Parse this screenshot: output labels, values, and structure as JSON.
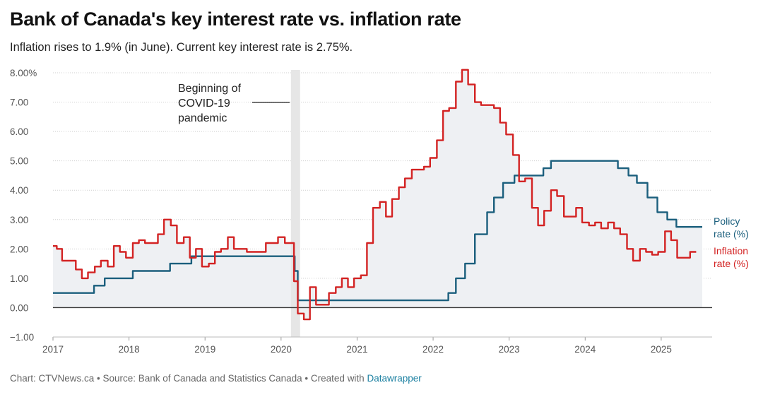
{
  "title": "Bank of Canada's key interest rate vs. inflation rate",
  "subtitle": "Inflation rises to 1.9% (in June). Current key interest rate is 2.75%.",
  "footer": {
    "credit": "Chart: CTVNews.ca • Source: Bank of Canada and Statistics Canada • Created with ",
    "brand": "Datawrapper"
  },
  "colors": {
    "policy": "#1b5f7d",
    "inflation": "#d32323",
    "fill": "#eef0f3",
    "band": "#e6e6e6",
    "zero": "#333333"
  },
  "chart_data": {
    "type": "line",
    "title": "Bank of Canada's key interest rate vs. inflation rate",
    "xlabel": "",
    "ylabel": "",
    "xlim": [
      2017.0,
      2025.67
    ],
    "ylim": [
      -1,
      8
    ],
    "y_ticks": [
      -1,
      0,
      1,
      2,
      3,
      4,
      5,
      6,
      7,
      8
    ],
    "y_tick_labels": [
      "−1.00",
      "0.00",
      "1.00",
      "2.00",
      "3.00",
      "4.00",
      "5.00",
      "6.00",
      "7.00",
      "8.00%"
    ],
    "x_ticks": [
      2017,
      2018,
      2019,
      2020,
      2021,
      2022,
      2023,
      2024,
      2025
    ],
    "x_tick_labels": [
      "2017",
      "2018",
      "2019",
      "2020",
      "2021",
      "2022",
      "2023",
      "2024",
      "2025"
    ],
    "grid": "horizontal dotted",
    "annotation": {
      "text": [
        "Beginning of",
        "COVID-19",
        "pandemic"
      ],
      "band": [
        2020.13,
        2020.25
      ]
    },
    "series": [
      {
        "name": "Policy rate (%)",
        "label_lines": [
          "Policy",
          "rate (%)"
        ],
        "color": "#1b5f7d",
        "step": true,
        "points": [
          [
            2017.0,
            0.5
          ],
          [
            2017.54,
            0.75
          ],
          [
            2017.68,
            1.0
          ],
          [
            2018.05,
            1.25
          ],
          [
            2018.54,
            1.5
          ],
          [
            2018.82,
            1.75
          ],
          [
            2020.18,
            1.25
          ],
          [
            2020.22,
            0.25
          ],
          [
            2022.2,
            0.5
          ],
          [
            2022.3,
            1.0
          ],
          [
            2022.42,
            1.5
          ],
          [
            2022.55,
            2.5
          ],
          [
            2022.71,
            3.25
          ],
          [
            2022.8,
            3.75
          ],
          [
            2022.92,
            4.25
          ],
          [
            2023.07,
            4.5
          ],
          [
            2023.45,
            4.75
          ],
          [
            2023.55,
            5.0
          ],
          [
            2024.43,
            4.75
          ],
          [
            2024.57,
            4.5
          ],
          [
            2024.68,
            4.25
          ],
          [
            2024.82,
            3.75
          ],
          [
            2024.95,
            3.25
          ],
          [
            2025.08,
            3.0
          ],
          [
            2025.2,
            2.75
          ],
          [
            2025.54,
            2.75
          ]
        ]
      },
      {
        "name": "Inflation rate (%)",
        "label_lines": [
          "Inflation",
          "rate (%)"
        ],
        "color": "#d32323",
        "step": true,
        "points": [
          [
            2017.0,
            2.1
          ],
          [
            2017.05,
            2.0
          ],
          [
            2017.12,
            1.6
          ],
          [
            2017.3,
            1.3
          ],
          [
            2017.38,
            1.0
          ],
          [
            2017.46,
            1.2
          ],
          [
            2017.55,
            1.4
          ],
          [
            2017.63,
            1.6
          ],
          [
            2017.72,
            1.4
          ],
          [
            2017.8,
            2.1
          ],
          [
            2017.88,
            1.9
          ],
          [
            2017.96,
            1.7
          ],
          [
            2018.05,
            2.2
          ],
          [
            2018.13,
            2.3
          ],
          [
            2018.21,
            2.2
          ],
          [
            2018.38,
            2.5
          ],
          [
            2018.46,
            3.0
          ],
          [
            2018.55,
            2.8
          ],
          [
            2018.63,
            2.2
          ],
          [
            2018.72,
            2.4
          ],
          [
            2018.8,
            1.7
          ],
          [
            2018.88,
            2.0
          ],
          [
            2018.96,
            1.4
          ],
          [
            2019.05,
            1.5
          ],
          [
            2019.13,
            1.9
          ],
          [
            2019.21,
            2.0
          ],
          [
            2019.3,
            2.4
          ],
          [
            2019.38,
            2.0
          ],
          [
            2019.55,
            1.9
          ],
          [
            2019.8,
            2.2
          ],
          [
            2019.88,
            2.2
          ],
          [
            2019.96,
            2.4
          ],
          [
            2020.05,
            2.2
          ],
          [
            2020.13,
            2.2
          ],
          [
            2020.17,
            0.9
          ],
          [
            2020.22,
            -0.2
          ],
          [
            2020.3,
            -0.4
          ],
          [
            2020.38,
            0.7
          ],
          [
            2020.46,
            0.1
          ],
          [
            2020.63,
            0.5
          ],
          [
            2020.72,
            0.7
          ],
          [
            2020.8,
            1.0
          ],
          [
            2020.88,
            0.7
          ],
          [
            2020.96,
            1.0
          ],
          [
            2021.05,
            1.1
          ],
          [
            2021.13,
            2.2
          ],
          [
            2021.21,
            3.4
          ],
          [
            2021.3,
            3.6
          ],
          [
            2021.38,
            3.1
          ],
          [
            2021.46,
            3.7
          ],
          [
            2021.55,
            4.1
          ],
          [
            2021.63,
            4.4
          ],
          [
            2021.72,
            4.7
          ],
          [
            2021.88,
            4.8
          ],
          [
            2021.96,
            5.1
          ],
          [
            2022.05,
            5.7
          ],
          [
            2022.13,
            6.7
          ],
          [
            2022.21,
            6.8
          ],
          [
            2022.3,
            7.7
          ],
          [
            2022.38,
            8.1
          ],
          [
            2022.46,
            7.6
          ],
          [
            2022.55,
            7.0
          ],
          [
            2022.63,
            6.9
          ],
          [
            2022.8,
            6.8
          ],
          [
            2022.88,
            6.3
          ],
          [
            2022.96,
            5.9
          ],
          [
            2023.05,
            5.2
          ],
          [
            2023.13,
            4.3
          ],
          [
            2023.21,
            4.4
          ],
          [
            2023.3,
            3.4
          ],
          [
            2023.38,
            2.8
          ],
          [
            2023.46,
            3.3
          ],
          [
            2023.55,
            4.0
          ],
          [
            2023.63,
            3.8
          ],
          [
            2023.72,
            3.1
          ],
          [
            2023.88,
            3.4
          ],
          [
            2023.96,
            2.9
          ],
          [
            2024.05,
            2.8
          ],
          [
            2024.13,
            2.9
          ],
          [
            2024.21,
            2.7
          ],
          [
            2024.3,
            2.9
          ],
          [
            2024.38,
            2.7
          ],
          [
            2024.46,
            2.5
          ],
          [
            2024.55,
            2.0
          ],
          [
            2024.63,
            1.6
          ],
          [
            2024.72,
            2.0
          ],
          [
            2024.8,
            1.9
          ],
          [
            2024.88,
            1.8
          ],
          [
            2024.96,
            1.9
          ],
          [
            2025.05,
            2.6
          ],
          [
            2025.13,
            2.3
          ],
          [
            2025.21,
            1.7
          ],
          [
            2025.38,
            1.9
          ],
          [
            2025.46,
            1.9
          ]
        ]
      }
    ]
  }
}
